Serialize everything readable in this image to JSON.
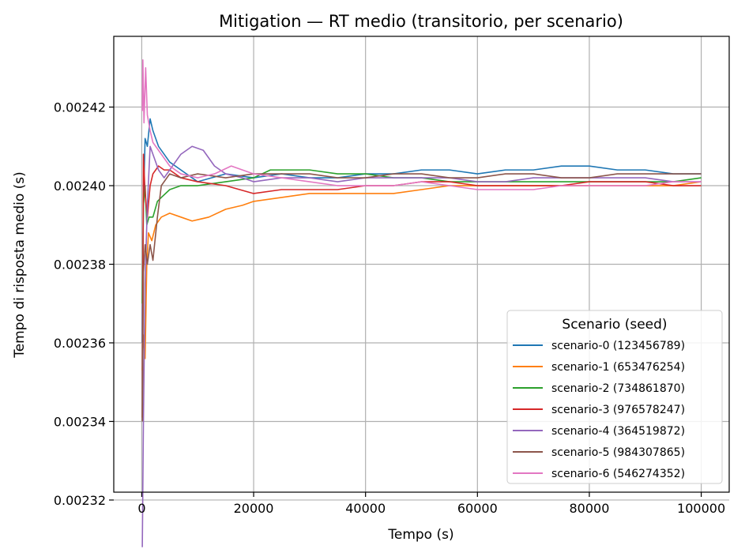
{
  "chart_data": {
    "type": "line",
    "title": "Mitigation — RT medio (transitorio, per scenario)",
    "xlabel": "Tempo (s)",
    "ylabel": "Tempo di risposta medio (s)",
    "xlim": [
      -5000,
      105000
    ],
    "ylim": [
      0.002322,
      0.002438
    ],
    "x_ticks": [
      0,
      20000,
      40000,
      60000,
      80000,
      100000
    ],
    "x_tick_labels": [
      "0",
      "20000",
      "40000",
      "60000",
      "80000",
      "100000"
    ],
    "y_ticks": [
      0.00232,
      0.00234,
      0.00236,
      0.00238,
      0.0024,
      0.00242
    ],
    "y_tick_labels": [
      "0.00232",
      "0.00234",
      "0.00236",
      "0.00238",
      "0.00240",
      "0.00242"
    ],
    "grid": true,
    "legend": {
      "title": "Scenario (seed)",
      "placement": "lower right"
    },
    "series": [
      {
        "name": "scenario-0 (123456789)",
        "color": "#1f77b4",
        "points": [
          [
            100,
            0.00236
          ],
          [
            300,
            0.002395
          ],
          [
            600,
            0.002412
          ],
          [
            1000,
            0.00241
          ],
          [
            1500,
            0.002417
          ],
          [
            2000,
            0.002414
          ],
          [
            3000,
            0.00241
          ],
          [
            4000,
            0.002408
          ],
          [
            5000,
            0.002406
          ],
          [
            7000,
            0.002404
          ],
          [
            10000,
            0.002401
          ],
          [
            15000,
            0.002403
          ],
          [
            20000,
            0.002402
          ],
          [
            25000,
            0.002403
          ],
          [
            30000,
            0.002402
          ],
          [
            35000,
            0.002402
          ],
          [
            40000,
            0.002403
          ],
          [
            45000,
            0.002403
          ],
          [
            50000,
            0.002404
          ],
          [
            55000,
            0.002404
          ],
          [
            60000,
            0.002403
          ],
          [
            65000,
            0.002404
          ],
          [
            70000,
            0.002404
          ],
          [
            75000,
            0.002405
          ],
          [
            80000,
            0.002405
          ],
          [
            85000,
            0.002404
          ],
          [
            90000,
            0.002404
          ],
          [
            95000,
            0.002403
          ],
          [
            100000,
            0.002403
          ]
        ]
      },
      {
        "name": "scenario-1 (653476254)",
        "color": "#ff7f0e",
        "points": [
          [
            100,
            0.002353
          ],
          [
            300,
            0.002362
          ],
          [
            600,
            0.002356
          ],
          [
            900,
            0.00238
          ],
          [
            1200,
            0.002388
          ],
          [
            1800,
            0.002386
          ],
          [
            2500,
            0.00239
          ],
          [
            3500,
            0.002392
          ],
          [
            5000,
            0.002393
          ],
          [
            7000,
            0.002392
          ],
          [
            9000,
            0.002391
          ],
          [
            12000,
            0.002392
          ],
          [
            15000,
            0.002394
          ],
          [
            18000,
            0.002395
          ],
          [
            20000,
            0.002396
          ],
          [
            25000,
            0.002397
          ],
          [
            30000,
            0.002398
          ],
          [
            35000,
            0.002398
          ],
          [
            40000,
            0.002398
          ],
          [
            45000,
            0.002398
          ],
          [
            50000,
            0.002399
          ],
          [
            55000,
            0.0024
          ],
          [
            60000,
            0.0024
          ],
          [
            65000,
            0.0024
          ],
          [
            70000,
            0.0024
          ],
          [
            75000,
            0.0024
          ],
          [
            80000,
            0.0024
          ],
          [
            85000,
            0.0024
          ],
          [
            90000,
            0.0024
          ],
          [
            95000,
            0.0024
          ],
          [
            100000,
            0.002401
          ]
        ]
      },
      {
        "name": "scenario-2 (734861870)",
        "color": "#2ca02c",
        "points": [
          [
            100,
            0.00237
          ],
          [
            300,
            0.002395
          ],
          [
            600,
            0.0024
          ],
          [
            900,
            0.00239
          ],
          [
            1300,
            0.002392
          ],
          [
            2000,
            0.002392
          ],
          [
            2800,
            0.002396
          ],
          [
            3500,
            0.002397
          ],
          [
            5000,
            0.002399
          ],
          [
            7000,
            0.0024
          ],
          [
            10000,
            0.0024
          ],
          [
            15000,
            0.002401
          ],
          [
            20000,
            0.002402
          ],
          [
            23000,
            0.002404
          ],
          [
            26000,
            0.002404
          ],
          [
            30000,
            0.002404
          ],
          [
            35000,
            0.002403
          ],
          [
            40000,
            0.002403
          ],
          [
            45000,
            0.002402
          ],
          [
            50000,
            0.002402
          ],
          [
            55000,
            0.002401
          ],
          [
            60000,
            0.002401
          ],
          [
            65000,
            0.002401
          ],
          [
            70000,
            0.002401
          ],
          [
            75000,
            0.002401
          ],
          [
            80000,
            0.002401
          ],
          [
            85000,
            0.002401
          ],
          [
            90000,
            0.002401
          ],
          [
            95000,
            0.002401
          ],
          [
            100000,
            0.002402
          ]
        ]
      },
      {
        "name": "scenario-3 (976578247)",
        "color": "#d62728",
        "points": [
          [
            100,
            0.002341
          ],
          [
            300,
            0.002408
          ],
          [
            600,
            0.002398
          ],
          [
            1000,
            0.002392
          ],
          [
            1500,
            0.0024
          ],
          [
            2000,
            0.002403
          ],
          [
            3000,
            0.002405
          ],
          [
            4000,
            0.002404
          ],
          [
            5000,
            0.002404
          ],
          [
            7000,
            0.002402
          ],
          [
            10000,
            0.002401
          ],
          [
            15000,
            0.0024
          ],
          [
            20000,
            0.002398
          ],
          [
            25000,
            0.002399
          ],
          [
            30000,
            0.002399
          ],
          [
            35000,
            0.002399
          ],
          [
            40000,
            0.0024
          ],
          [
            45000,
            0.0024
          ],
          [
            50000,
            0.002401
          ],
          [
            55000,
            0.002401
          ],
          [
            60000,
            0.0024
          ],
          [
            65000,
            0.0024
          ],
          [
            70000,
            0.0024
          ],
          [
            75000,
            0.0024
          ],
          [
            80000,
            0.002401
          ],
          [
            85000,
            0.002401
          ],
          [
            90000,
            0.002401
          ],
          [
            95000,
            0.0024
          ],
          [
            100000,
            0.0024
          ]
        ]
      },
      {
        "name": "scenario-4 (364519872)",
        "color": "#9467bd",
        "points": [
          [
            100,
            0.002308
          ],
          [
            300,
            0.00234
          ],
          [
            600,
            0.002375
          ],
          [
            1000,
            0.002395
          ],
          [
            1500,
            0.00241
          ],
          [
            2000,
            0.002408
          ],
          [
            3000,
            0.002404
          ],
          [
            4000,
            0.002402
          ],
          [
            5000,
            0.002404
          ],
          [
            7000,
            0.002408
          ],
          [
            9000,
            0.00241
          ],
          [
            11000,
            0.002409
          ],
          [
            13000,
            0.002405
          ],
          [
            15000,
            0.002403
          ],
          [
            18000,
            0.002402
          ],
          [
            20000,
            0.002401
          ],
          [
            25000,
            0.002402
          ],
          [
            30000,
            0.002402
          ],
          [
            35000,
            0.002401
          ],
          [
            40000,
            0.002402
          ],
          [
            45000,
            0.002402
          ],
          [
            50000,
            0.002402
          ],
          [
            55000,
            0.002402
          ],
          [
            60000,
            0.002401
          ],
          [
            65000,
            0.002401
          ],
          [
            70000,
            0.002402
          ],
          [
            75000,
            0.002402
          ],
          [
            80000,
            0.002402
          ],
          [
            85000,
            0.002402
          ],
          [
            90000,
            0.002402
          ],
          [
            95000,
            0.002401
          ],
          [
            100000,
            0.002401
          ]
        ]
      },
      {
        "name": "scenario-5 (984307865)",
        "color": "#8c564b",
        "points": [
          [
            100,
            0.00234
          ],
          [
            300,
            0.002378
          ],
          [
            600,
            0.002385
          ],
          [
            1000,
            0.00238
          ],
          [
            1500,
            0.002385
          ],
          [
            2000,
            0.002381
          ],
          [
            2800,
            0.002392
          ],
          [
            3500,
            0.0024
          ],
          [
            5000,
            0.002403
          ],
          [
            7000,
            0.002402
          ],
          [
            10000,
            0.002403
          ],
          [
            15000,
            0.002402
          ],
          [
            20000,
            0.002403
          ],
          [
            25000,
            0.002403
          ],
          [
            30000,
            0.002403
          ],
          [
            35000,
            0.002402
          ],
          [
            40000,
            0.002402
          ],
          [
            45000,
            0.002403
          ],
          [
            50000,
            0.002403
          ],
          [
            55000,
            0.002402
          ],
          [
            60000,
            0.002402
          ],
          [
            65000,
            0.002403
          ],
          [
            70000,
            0.002403
          ],
          [
            75000,
            0.002402
          ],
          [
            80000,
            0.002402
          ],
          [
            85000,
            0.002403
          ],
          [
            90000,
            0.002403
          ],
          [
            95000,
            0.002403
          ],
          [
            100000,
            0.002403
          ]
        ]
      },
      {
        "name": "scenario-6 (546274352)",
        "color": "#e377c2",
        "points": [
          [
            100,
            0.002419
          ],
          [
            200,
            0.002432
          ],
          [
            400,
            0.002416
          ],
          [
            700,
            0.00243
          ],
          [
            1000,
            0.002418
          ],
          [
            1500,
            0.002414
          ],
          [
            2000,
            0.002411
          ],
          [
            3000,
            0.002409
          ],
          [
            4000,
            0.002407
          ],
          [
            5000,
            0.002405
          ],
          [
            7000,
            0.002403
          ],
          [
            10000,
            0.002402
          ],
          [
            13000,
            0.002403
          ],
          [
            16000,
            0.002405
          ],
          [
            20000,
            0.002403
          ],
          [
            25000,
            0.002402
          ],
          [
            30000,
            0.002401
          ],
          [
            35000,
            0.0024
          ],
          [
            40000,
            0.0024
          ],
          [
            45000,
            0.0024
          ],
          [
            50000,
            0.002401
          ],
          [
            55000,
            0.0024
          ],
          [
            60000,
            0.002399
          ],
          [
            65000,
            0.002399
          ],
          [
            70000,
            0.002399
          ],
          [
            75000,
            0.0024
          ],
          [
            80000,
            0.0024
          ],
          [
            85000,
            0.0024
          ],
          [
            90000,
            0.0024
          ],
          [
            95000,
            0.002401
          ],
          [
            100000,
            0.002401
          ]
        ]
      }
    ]
  }
}
